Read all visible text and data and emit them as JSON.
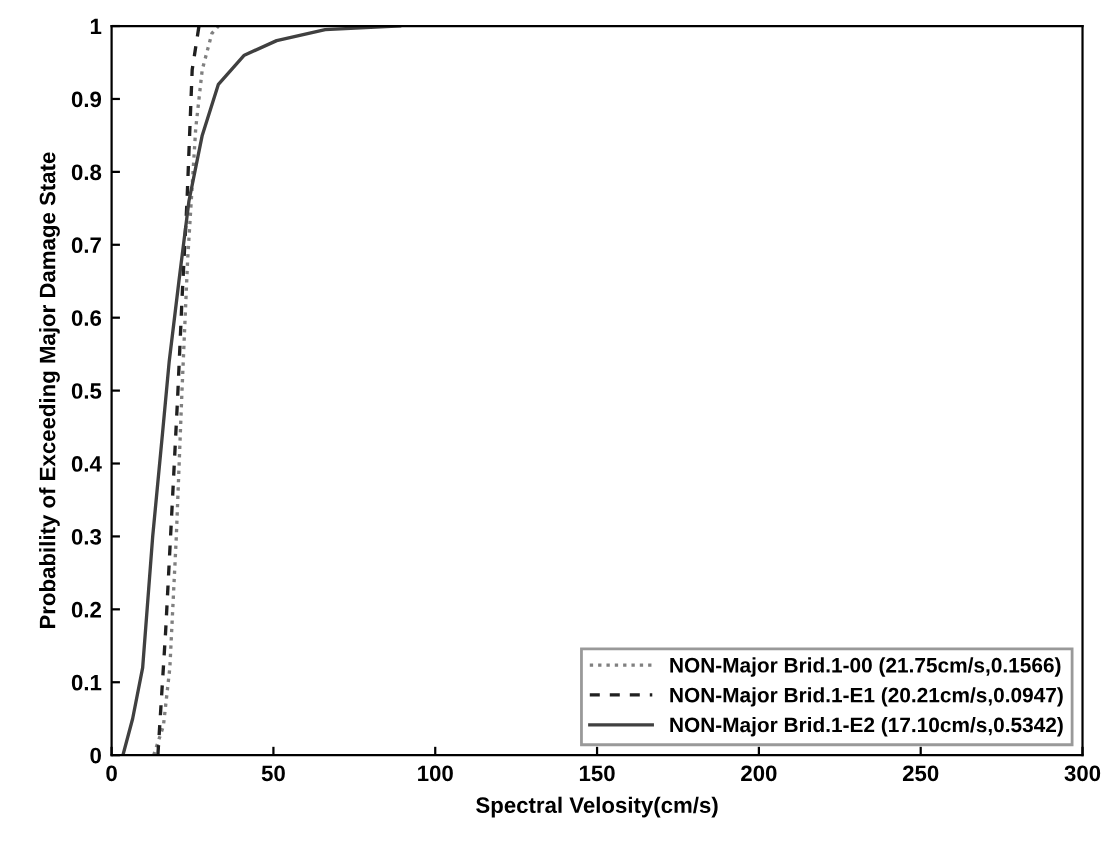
{
  "chart_data": {
    "type": "line",
    "xlabel": "Spectral Velosity(cm/s)",
    "ylabel": "Probability of Exceeding Major Damage State",
    "xlim": [
      0,
      300
    ],
    "xticks": [
      0,
      50,
      100,
      150,
      200,
      250,
      300
    ],
    "ylim": [
      0,
      1
    ],
    "yticks": [
      0,
      0.1,
      0.2,
      0.3,
      0.4,
      0.5,
      0.6,
      0.7,
      0.8,
      0.9,
      1
    ],
    "grid": false,
    "legend": "bottom right",
    "marker": "none",
    "series": [
      {
        "name": "NON-Major Brid.1-00 (21.75cm/s,0.1566)",
        "color": "#808080",
        "line_style": "dotted",
        "x": [
          13,
          16,
          18,
          20,
          21.75,
          23.5,
          26,
          28,
          31,
          33
        ],
        "values": [
          0,
          0.04,
          0.12,
          0.3,
          0.5,
          0.68,
          0.86,
          0.94,
          0.99,
          1.0
        ]
      },
      {
        "name": "NON-Major Brid.1-E1 (20.21cm/s,0.0947)",
        "color": "#202020",
        "line_style": "dashed",
        "x": [
          14.3,
          16.7,
          18.8,
          20.4,
          21.8,
          23.3,
          24.9,
          27
        ],
        "values": [
          0,
          0.17,
          0.35,
          0.49,
          0.63,
          0.76,
          0.94,
          1.0
        ]
      },
      {
        "name": "NON-Major Brid.1-E2 (17.10cm/s,0.5342)",
        "color": "#404040",
        "line_style": "solid",
        "x": [
          3.5,
          6.5,
          9.6,
          12.7,
          15.7,
          17.8,
          20.8,
          23.9,
          28,
          33,
          41,
          51,
          66,
          89
        ],
        "values": [
          0,
          0.05,
          0.12,
          0.3,
          0.44,
          0.54,
          0.65,
          0.76,
          0.85,
          0.92,
          0.96,
          0.98,
          0.995,
          1.0
        ]
      }
    ]
  }
}
